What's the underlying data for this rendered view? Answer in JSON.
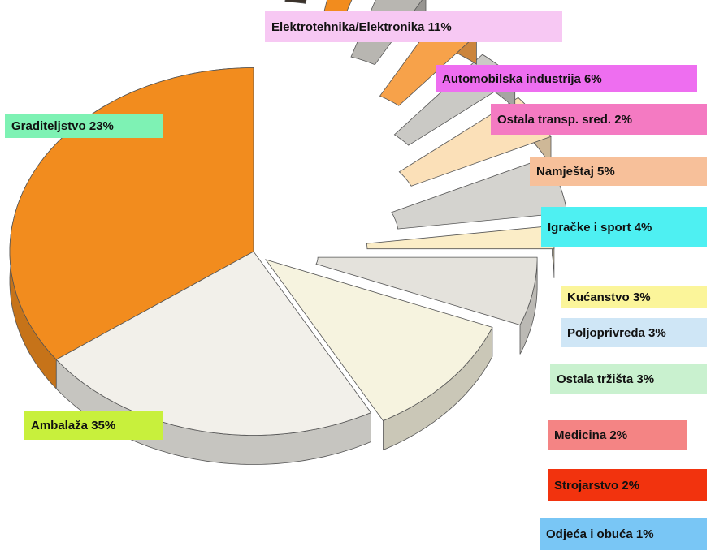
{
  "chart_data": {
    "type": "pie",
    "style": "exploded-3d",
    "slices": [
      {
        "label": "Ambalaža 35%",
        "value": 35,
        "color": "#f28c1e",
        "label_color": "#c8f03c"
      },
      {
        "label": "Graditeljstvo 23%",
        "value": 23,
        "color": "#f2f0ea",
        "label_color": "#7ef2b4"
      },
      {
        "label": "Elektrotehnika/Elektronika 11%",
        "value": 11,
        "color": "#f6f3df",
        "label_color": "#f7c8f3"
      },
      {
        "label": "Automobilska industrija 6%",
        "value": 6,
        "color": "#e4e2dc",
        "label_color": "#ee6ef0"
      },
      {
        "label": "Ostala transp. sred. 2%",
        "value": 2,
        "color": "#fbedc7",
        "label_color": "#f47ac2"
      },
      {
        "label": "Namještaj  5%",
        "value": 5,
        "color": "#d4d3cf",
        "label_color": "#f7c09a"
      },
      {
        "label": "Igračke i sport  4%",
        "value": 4,
        "color": "#fbe0b8",
        "label_color": "#4ef0f2"
      },
      {
        "label": "Kućanstvo  3%",
        "value": 3,
        "color": "#cac9c5",
        "label_color": "#fbf59a"
      },
      {
        "label": "Poljoprivreda  3%",
        "value": 3,
        "color": "#f7a24a",
        "label_color": "#cfe6f6"
      },
      {
        "label": "Ostala tržišta  3%",
        "value": 3,
        "color": "#b8b6b1",
        "label_color": "#c9f1cf"
      },
      {
        "label": "Medicina  2%",
        "value": 2,
        "color": "#f28c1e",
        "label_color": "#f48484"
      },
      {
        "label": "Strojarstvo  2%",
        "value": 2,
        "color": "#3b332b",
        "label_color": "#f2330e"
      },
      {
        "label": "Odjeća i obuća  1%",
        "value": 1,
        "color": "#ffffff",
        "label_color": "#79c6f5"
      }
    ]
  }
}
